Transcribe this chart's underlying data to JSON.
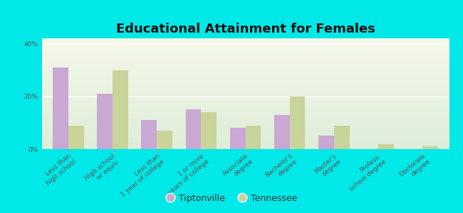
{
  "title": "Educational Attainment for Females",
  "categories": [
    "Less than\nhigh school",
    "High school\nor equiv.",
    "Less than\n1 year of college",
    "1 or more\nyears of college",
    "Associate\ndegree",
    "Bachelor's\ndegree",
    "Master's\ndegree",
    "Profess.\nschool degree",
    "Doctorate\ndegree"
  ],
  "tiptonville": [
    31,
    21,
    11,
    15,
    8,
    13,
    5,
    0,
    0
  ],
  "tennessee": [
    9,
    30,
    7,
    14,
    9,
    20,
    9,
    2,
    1
  ],
  "tiptonville_color": "#c9a8d4",
  "tennessee_color": "#c8d49a",
  "background_color": "#00e8e8",
  "plot_bg": "#edf3e0",
  "ylim": [
    0,
    42
  ],
  "yticks": [
    0,
    20,
    40
  ],
  "ytick_labels": [
    "0%",
    "20%",
    "40%"
  ],
  "bar_width": 0.35,
  "title_fontsize": 13,
  "tick_fontsize": 6.5,
  "legend_labels": [
    "Tiptonville",
    "Tennessee"
  ],
  "legend_fontsize": 9
}
